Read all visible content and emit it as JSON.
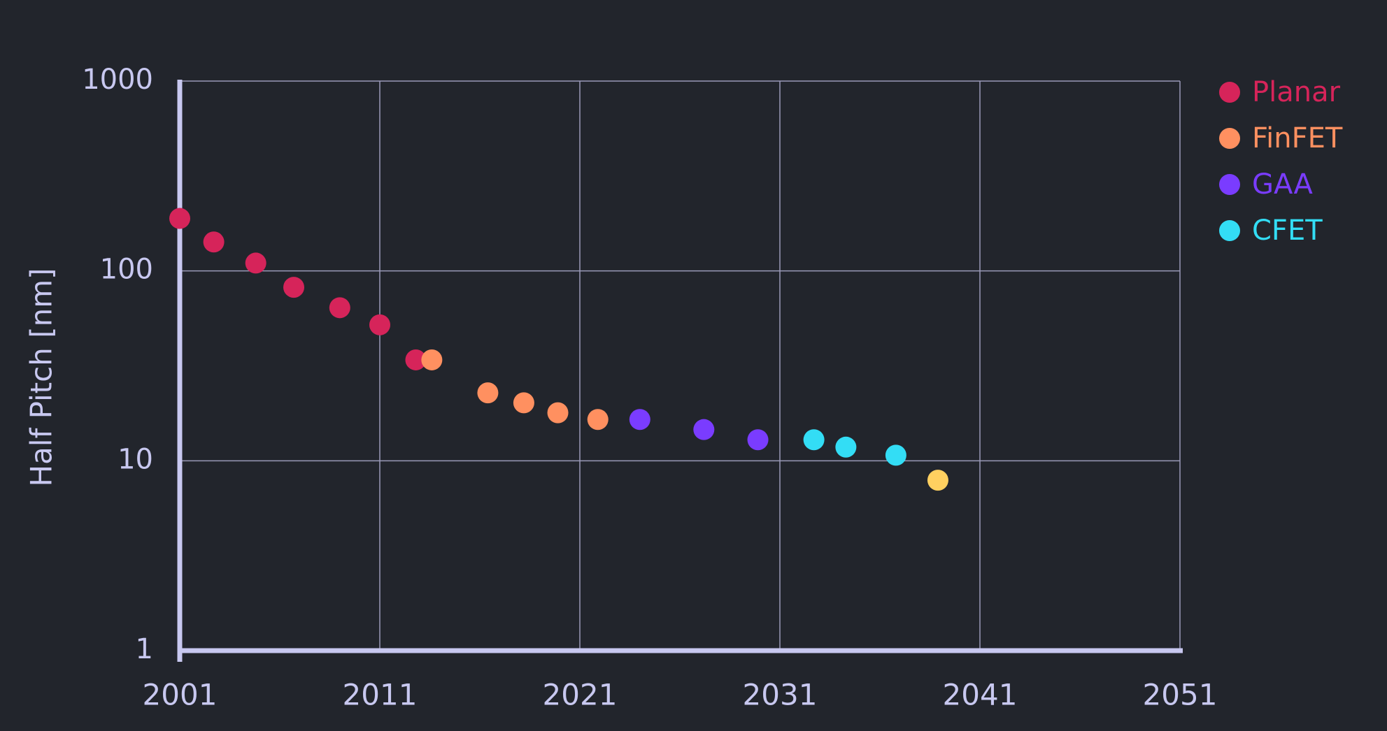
{
  "chart_data": {
    "type": "scatter",
    "y_label": "Half Pitch [nm]",
    "xlim": [
      2001,
      2051
    ],
    "xticks": [
      2001,
      2011,
      2021,
      2031,
      2041,
      2051
    ],
    "ylim": [
      1,
      1000
    ],
    "yticks": [
      1,
      10,
      100,
      1000
    ],
    "log_y": true,
    "grid": true,
    "legend": "right",
    "series": [
      {
        "name": "Planar",
        "color": "#d6245a",
        "x": [
          2001.0,
          2002.7,
          2004.8,
          2006.7,
          2009.0,
          2011.0,
          2012.8
        ],
        "values": [
          189,
          142,
          110,
          82,
          64,
          52,
          34
        ]
      },
      {
        "name": "FinFET",
        "color": "#ff9060",
        "x": [
          2013.6,
          2016.4,
          2018.2,
          2019.9,
          2021.9
        ],
        "values": [
          34,
          22.8,
          20.2,
          17.9,
          16.5
        ]
      },
      {
        "name": "GAA",
        "color": "#7a3cff",
        "x": [
          2024.0,
          2027.2,
          2029.9
        ],
        "values": [
          16.5,
          14.6,
          12.9
        ]
      },
      {
        "name": "CFET",
        "color": "#33ddf5",
        "x": [
          2032.7,
          2034.3,
          2036.8
        ],
        "values": [
          12.9,
          11.8,
          10.7
        ]
      },
      {
        "color": "#ffd060",
        "x": [
          2038.9
        ],
        "values": [
          7.9
        ]
      }
    ]
  }
}
